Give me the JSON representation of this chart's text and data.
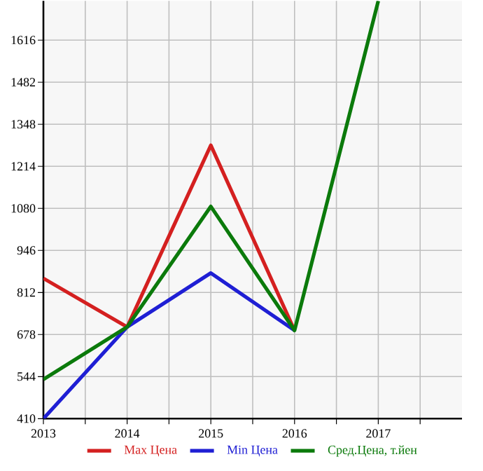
{
  "chart_data": {
    "type": "line",
    "x": [
      2013,
      2014,
      2015,
      2016,
      2017
    ],
    "xlim": [
      2013,
      2018
    ],
    "xticks": [
      2013,
      2014,
      2015,
      2016,
      2017
    ],
    "ylim": [
      410,
      1741
    ],
    "yticks": [
      410,
      544,
      678,
      812,
      946,
      1080,
      1214,
      1348,
      1482,
      1616
    ],
    "grid": true,
    "legend": "bottom",
    "marker": "none",
    "line_style": "solid",
    "series": [
      {
        "name": "Max Цена",
        "color": "#d42020",
        "values": [
          857,
          702,
          1281,
          691,
          null
        ]
      },
      {
        "name": "Min Цена",
        "color": "#1f1fd4",
        "values": [
          410,
          702,
          874,
          691,
          null
        ]
      },
      {
        "name": "Сред.Цена, т.йен",
        "color": "#0b7a0b",
        "values": [
          535,
          702,
          1086,
          691,
          1741
        ]
      }
    ]
  }
}
